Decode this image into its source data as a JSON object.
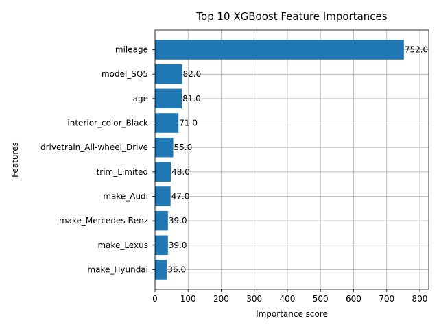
{
  "chart_data": {
    "type": "bar",
    "orientation": "horizontal",
    "title": "Top 10 XGBoost Feature Importances",
    "xlabel": "Importance score",
    "ylabel": "Features",
    "categories": [
      "mileage",
      "model_SQ5",
      "age",
      "interior_color_Black",
      "drivetrain_All-wheel_Drive",
      "trim_Limited",
      "make_Audi",
      "make_Mercedes-Benz",
      "make_Lexus",
      "make_Hyundai"
    ],
    "values": [
      752.0,
      82.0,
      81.0,
      71.0,
      55.0,
      48.0,
      47.0,
      39.0,
      39.0,
      36.0
    ],
    "data_labels": [
      "752.0",
      "82.0",
      "81.0",
      "71.0",
      "55.0",
      "48.0",
      "47.0",
      "39.0",
      "39.0",
      "36.0"
    ],
    "xlim": [
      0,
      827
    ],
    "xticks": [
      0,
      100,
      200,
      300,
      400,
      500,
      600,
      700,
      800
    ],
    "grid": true,
    "bar_color": "#1f77b4"
  }
}
